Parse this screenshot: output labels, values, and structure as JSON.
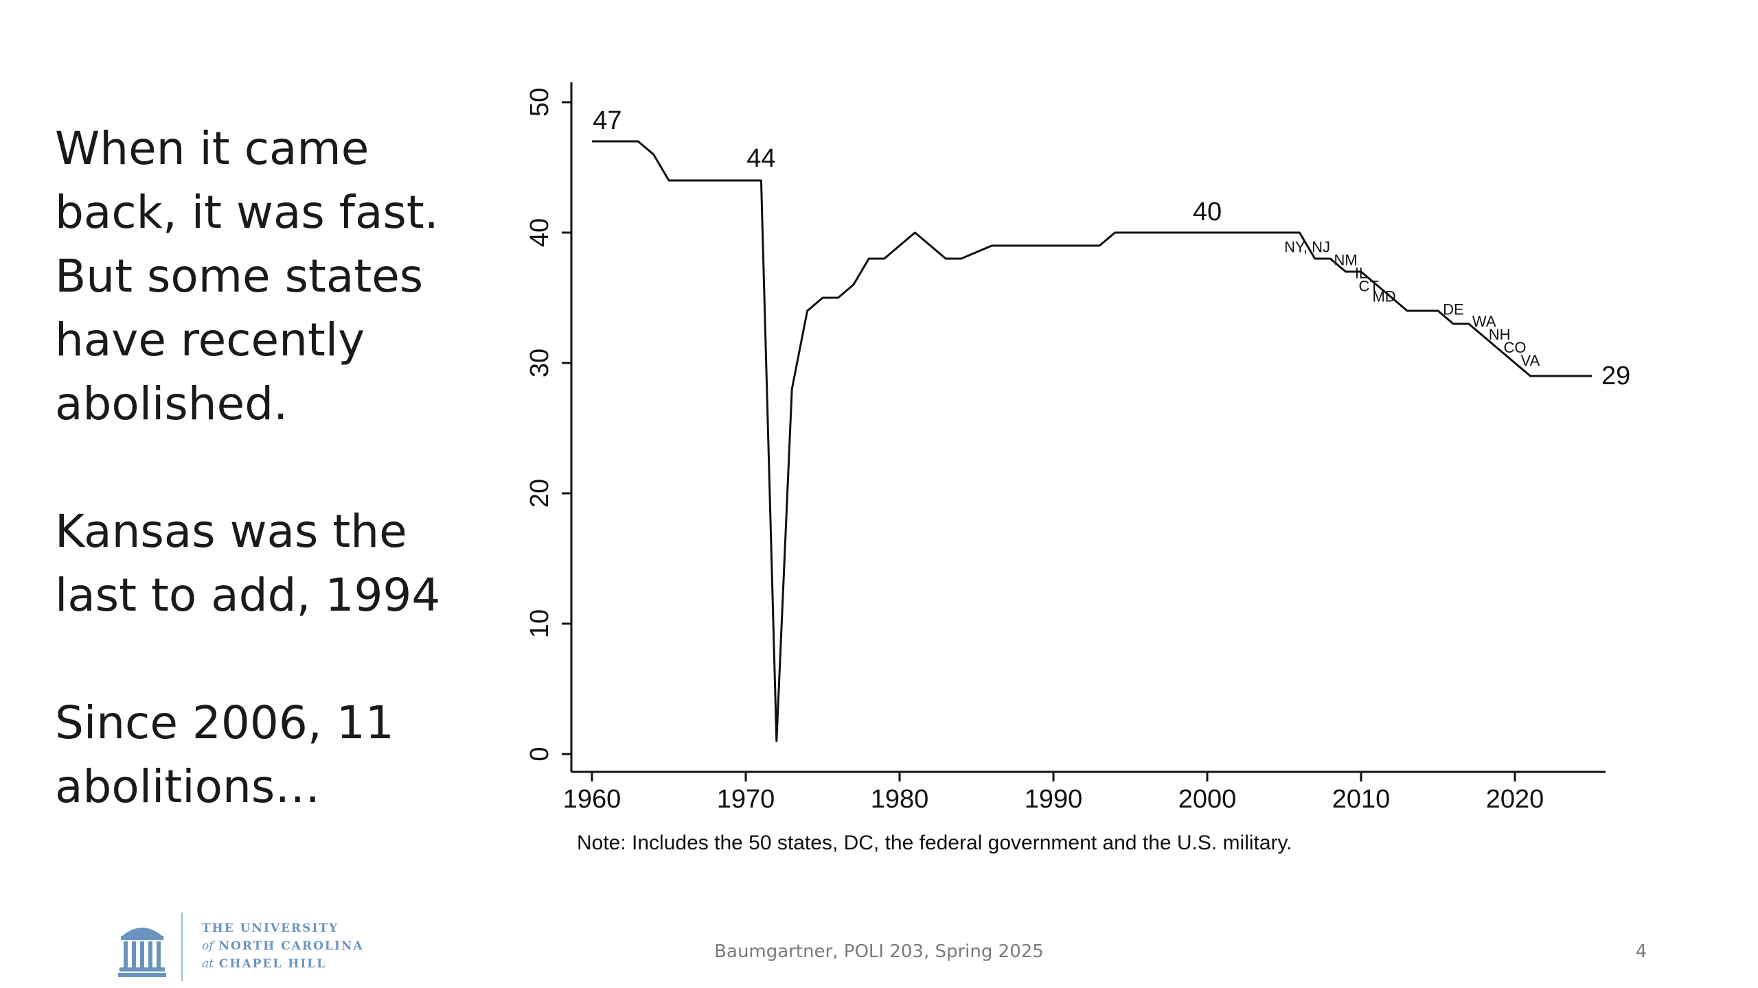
{
  "slide": {
    "paragraphs": [
      "When it came back, it was fast. But some states have recently abolished.",
      "Kansas was the last to add, 1994",
      "Since 2006, 11 abolitions…"
    ],
    "footer": "Baumgartner, POLI 203, Spring 2025",
    "page_number": "4",
    "logo": {
      "line1": "THE UNIVERSITY",
      "line2_prefix": "of",
      "line2": "NORTH CAROLINA",
      "line3_prefix": "at",
      "line3": "CHAPEL HILL",
      "color": "#6a93bf"
    }
  },
  "chart_data": {
    "type": "line",
    "title": "",
    "xlabel": "",
    "ylabel": "",
    "xlim": [
      1960,
      2025
    ],
    "ylim": [
      0,
      50
    ],
    "x_ticks": [
      1960,
      1970,
      1980,
      1990,
      2000,
      2010,
      2020
    ],
    "y_ticks": [
      0,
      10,
      20,
      30,
      40,
      50
    ],
    "grid": false,
    "series": [
      {
        "x": [
          1960,
          1963,
          1964,
          1965,
          1971,
          1972,
          1973,
          1974,
          1975,
          1976,
          1977,
          1978,
          1979,
          1981,
          1983,
          1984,
          1986,
          1987,
          1993,
          1994,
          2006,
          2007,
          2008,
          2009,
          2010,
          2011,
          2012,
          2013,
          2015,
          2016,
          2017,
          2018,
          2019,
          2020,
          2021,
          2025
        ],
        "y": [
          47,
          47,
          46,
          44,
          44,
          1,
          28,
          34,
          35,
          35,
          36,
          38,
          38,
          40,
          38,
          38,
          39,
          39,
          39,
          40,
          40,
          38,
          38,
          37,
          37,
          36,
          35,
          34,
          34,
          33,
          33,
          32,
          31,
          30,
          29,
          29
        ]
      }
    ],
    "annotations": [
      {
        "text": "47",
        "x": 1961,
        "y": 47
      },
      {
        "text": "44",
        "x": 1971,
        "y": 44
      },
      {
        "text": "40",
        "x": 2000,
        "y": 40
      },
      {
        "text": "29",
        "x": 2025,
        "y": 29
      }
    ],
    "state_labels": [
      {
        "text": "NY, NJ",
        "x": 2006.5,
        "y": 38.5
      },
      {
        "text": "NM",
        "x": 2009,
        "y": 37.5
      },
      {
        "text": "IL",
        "x": 2010,
        "y": 36.5
      },
      {
        "text": "CT",
        "x": 2010.5,
        "y": 35.5
      },
      {
        "text": "MD",
        "x": 2011.5,
        "y": 34.7
      },
      {
        "text": "DE",
        "x": 2016,
        "y": 33.7
      },
      {
        "text": "WA",
        "x": 2018,
        "y": 32.8
      },
      {
        "text": "NH",
        "x": 2019,
        "y": 31.8
      },
      {
        "text": "CO",
        "x": 2020,
        "y": 30.8
      },
      {
        "text": "VA",
        "x": 2021,
        "y": 29.8
      }
    ],
    "note": "Note: Includes the 50 states, DC, the federal government and the U.S. military."
  }
}
